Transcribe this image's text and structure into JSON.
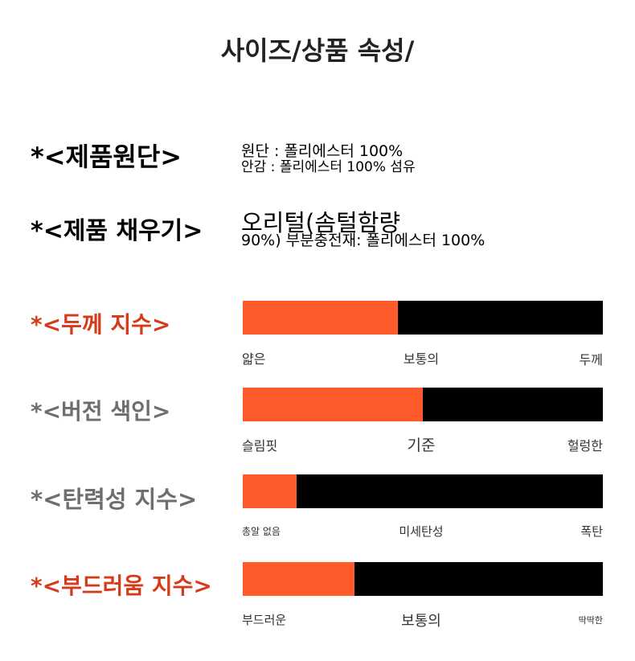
{
  "title": "사이즈/상품 속성/",
  "fabric": {
    "label": "*<제품원단>",
    "line1": "원단 : 폴리에스터 100%",
    "line2": "안감 : 폴리에스터 100% 섬유"
  },
  "filling": {
    "label": "*<제품 채우기>",
    "line1": "오리털(솜털함량",
    "line2": "90%) 부분충전재: 폴리에스터 100%"
  },
  "colors": {
    "accent": "#ff5a2a",
    "bar_track": "#000000",
    "label_red": "#d63a1a",
    "label_gray": "#6e6e6e"
  },
  "indices": [
    {
      "label": "*<두께 지수>",
      "label_color": "red",
      "fill": 0.43,
      "scale": [
        "얇은",
        "보통의",
        "두께"
      ]
    },
    {
      "label": "*<버전 색인>",
      "label_color": "gray",
      "fill": 0.5,
      "scale": [
        "슬림핏",
        "기준",
        "헐렁한"
      ]
    },
    {
      "label": "*<탄력성 지수>",
      "label_color": "gray",
      "fill": 0.15,
      "scale": [
        "총알 없음",
        "미세탄성",
        "폭탄"
      ]
    },
    {
      "label": "*<부드러움 지수>",
      "label_color": "red",
      "fill": 0.31,
      "scale": [
        "부드러운",
        "보통의",
        "딱딱한"
      ]
    }
  ]
}
